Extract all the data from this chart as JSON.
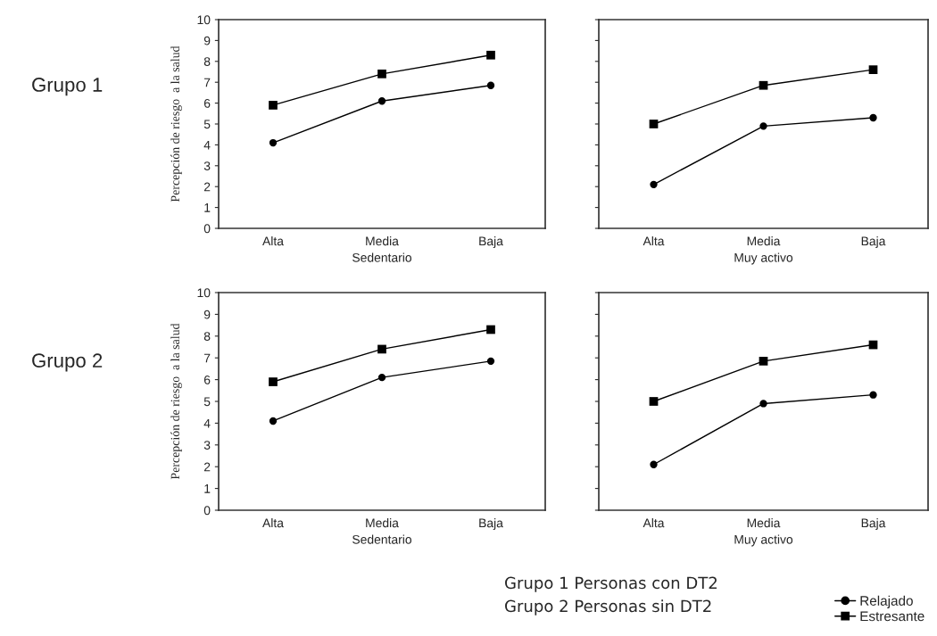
{
  "chart_data": [
    {
      "type": "line",
      "categories": [
        "Alta",
        "Media",
        "Baja"
      ],
      "xlabel": "Sedentario",
      "ylabel": "Percepción de riesgo  a la salud",
      "ylim": [
        0,
        10
      ],
      "yticks": [
        0,
        1,
        2,
        3,
        4,
        5,
        6,
        7,
        8,
        9,
        10
      ],
      "annotations": [
        "Grupo 1"
      ],
      "grid": false,
      "legend": false,
      "series": [
        {
          "color": "#000000",
          "marker": "circle",
          "values": [
            4.1,
            6.1,
            6.85
          ]
        },
        {
          "color": "#000000",
          "marker": "square",
          "values": [
            5.9,
            7.4,
            8.3
          ]
        }
      ]
    },
    {
      "type": "line",
      "categories": [
        "Alta",
        "Media",
        "Baja"
      ],
      "xlabel": "Muy activo",
      "ylim": [
        0,
        10
      ],
      "yticks": [
        {
          "value": 0,
          "label": null
        },
        {
          "value": 1,
          "label": null
        },
        {
          "value": 2,
          "label": null
        },
        {
          "value": 3,
          "label": null
        },
        {
          "value": 4,
          "label": null
        },
        {
          "value": 5,
          "label": null
        },
        {
          "value": 6,
          "label": null
        },
        {
          "value": 7,
          "label": null
        },
        {
          "value": 8,
          "label": null
        },
        {
          "value": 9,
          "label": null
        },
        {
          "value": 10,
          "label": null
        }
      ],
      "tick_labels": "x",
      "grid": false,
      "legend": false,
      "series": [
        {
          "color": "#000000",
          "marker": "circle",
          "values": [
            2.1,
            4.9,
            5.3
          ]
        },
        {
          "color": "#000000",
          "marker": "square",
          "values": [
            5.0,
            6.85,
            7.6
          ]
        }
      ]
    },
    {
      "type": "line",
      "categories": [
        "Alta",
        "Media",
        "Baja"
      ],
      "xlabel": "Sedentario",
      "ylabel": "Percepción de riesgo  a la salud",
      "ylim": [
        0,
        10
      ],
      "yticks": [
        0,
        1,
        2,
        3,
        4,
        5,
        6,
        7,
        8,
        9,
        10
      ],
      "annotations": [
        "Grupo 2"
      ],
      "grid": false,
      "legend": false,
      "series": [
        {
          "color": "#000000",
          "marker": "circle",
          "values": [
            4.1,
            6.1,
            6.85
          ]
        },
        {
          "color": "#000000",
          "marker": "square",
          "values": [
            5.9,
            7.4,
            8.3
          ]
        }
      ]
    },
    {
      "type": "line",
      "categories": [
        "Alta",
        "Media",
        "Baja"
      ],
      "xlabel": "Muy activo",
      "ylim": [
        0,
        10
      ],
      "yticks": [
        {
          "value": 0,
          "label": null
        },
        {
          "value": 1,
          "label": null
        },
        {
          "value": 2,
          "label": null
        },
        {
          "value": 3,
          "label": null
        },
        {
          "value": 4,
          "label": null
        },
        {
          "value": 5,
          "label": null
        },
        {
          "value": 6,
          "label": null
        },
        {
          "value": 7,
          "label": null
        },
        {
          "value": 8,
          "label": null
        },
        {
          "value": 9,
          "label": null
        },
        {
          "value": 10,
          "label": null
        }
      ],
      "tick_labels": "x",
      "grid": false,
      "legend": "bottom right",
      "annotations": [
        "Grupo 1 Personas con DT2",
        "Grupo 2 Personas sin DT2"
      ],
      "series": [
        {
          "name": "Relajado",
          "color": "#000000",
          "marker": "circle",
          "values": [
            2.1,
            4.9,
            5.3
          ]
        },
        {
          "name": "Estresante",
          "color": "#000000",
          "marker": "square",
          "values": [
            5.0,
            6.85,
            7.6
          ]
        }
      ]
    }
  ]
}
